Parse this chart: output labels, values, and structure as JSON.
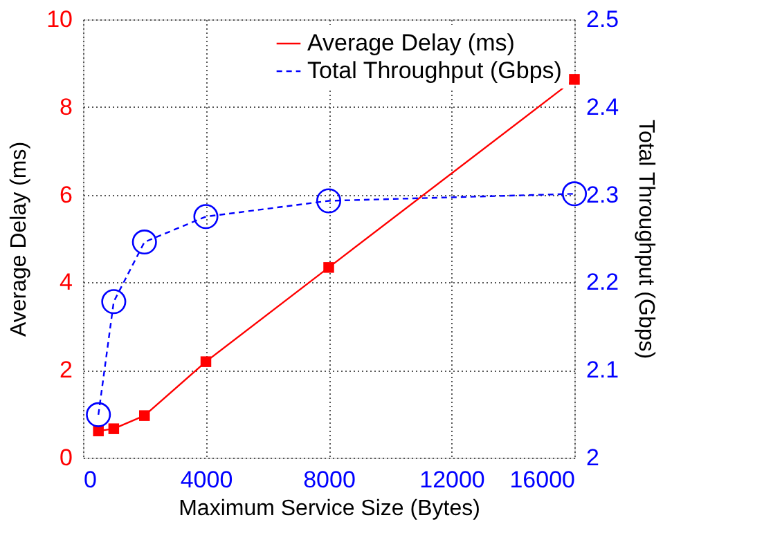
{
  "chart_data": {
    "type": "line",
    "xlabel": "Maximum Service Size (Bytes)",
    "ylabel": "Average Delay (ms)",
    "y2label": "Total Throughput (Gbps)",
    "x": [
      500,
      1000,
      2000,
      4000,
      8000,
      16000
    ],
    "xlim": [
      0,
      16000
    ],
    "xticks": [
      0,
      4000,
      8000,
      12000,
      16000
    ],
    "ylim": [
      0,
      10
    ],
    "yticks": [
      0,
      2,
      4,
      6,
      8,
      10
    ],
    "y2lim": [
      2,
      2.5
    ],
    "y2ticks": [
      2,
      2.1,
      2.2,
      2.3,
      2.4,
      2.5
    ],
    "grid": true,
    "legend": "top right",
    "series": [
      {
        "name": "Average Delay (ms)",
        "color": "#ff0000",
        "axis": "y",
        "marker": "square",
        "line_style": "solid",
        "values": [
          0.61,
          0.66,
          0.96,
          2.19,
          4.34,
          8.63
        ]
      },
      {
        "name": "Total Throughput (Gbps)",
        "color": "#0000ff",
        "axis": "y2",
        "marker": "circle",
        "line_style": "dashed",
        "values": [
          2.049,
          2.178,
          2.246,
          2.275,
          2.293,
          2.301
        ]
      }
    ]
  }
}
